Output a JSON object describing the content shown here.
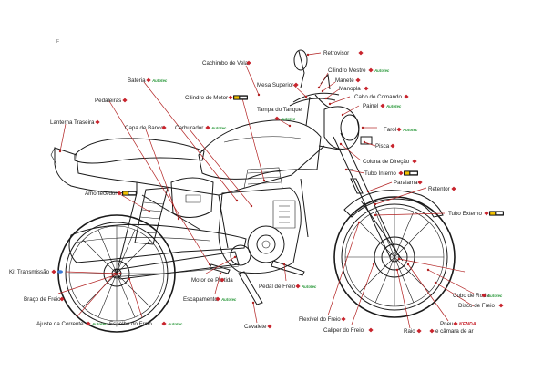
{
  "corner_mark": "F",
  "brand_names": {
    "autotec": "Autotec",
    "kenda": "KENDA"
  },
  "colors": {
    "leader": "#b22222",
    "diamond_icon": "#c8232c",
    "autotec_green": "#2e9a3e",
    "label_text": "#222222"
  },
  "labels": {
    "retrovisor": "Retrovisor",
    "cachimbo_de_vela": "Cachimbo de Vela",
    "cilindro_mestre": "Cilindro Mestre",
    "manete": "Manete",
    "mesa_superior": "Mesa Superior",
    "manopla": "Manopla",
    "bateria": "Bateria",
    "cabo_de_comando": "Cabo de Comando",
    "cilindro_do_motor": "Cilindro do Motor",
    "pedaleiras": "Pedaleiras",
    "painel": "Painel",
    "tampa_do_tanque": "Tampa do Tanque",
    "lanterna_traseira": "Lanterna Traseira",
    "capa_de_banco": "Capa de Banco",
    "carburador": "Carburador",
    "farol": "Farol",
    "pisca": "Pisca",
    "coluna_de_direcao": "Coluna de Direção",
    "tubo_interno": "Tubo Interno",
    "paralama": "Paralama",
    "retentor": "Retentor",
    "amortecedor": "Amortecedor",
    "tubo_externo": "Tubo Externo",
    "kit_transmissao": "Kit Transmissão",
    "motor_de_partida": "Motor de Partida",
    "pedal_de_freio": "Pedal de Freio",
    "cubo_de_roda": "Cubo de Roda",
    "disco_de_freio": "Disco de Freio",
    "braco_de_freio": "Braço de Freio",
    "escapamento": "Escapamento",
    "camara_de_ar": "Câmara de Ar",
    "flexivel_do_freio": "Flexível do Freio",
    "ajuste_da_corrente": "Ajuste da Corrente",
    "espelho_do_freio": "Espelho do Freio",
    "cavalete": "Cavalete",
    "pneu": "Pneu",
    "pneu_suffix": "e câmara de ar",
    "caliper_do_freio": "Caliper do Freio",
    "raio": "Raio"
  }
}
